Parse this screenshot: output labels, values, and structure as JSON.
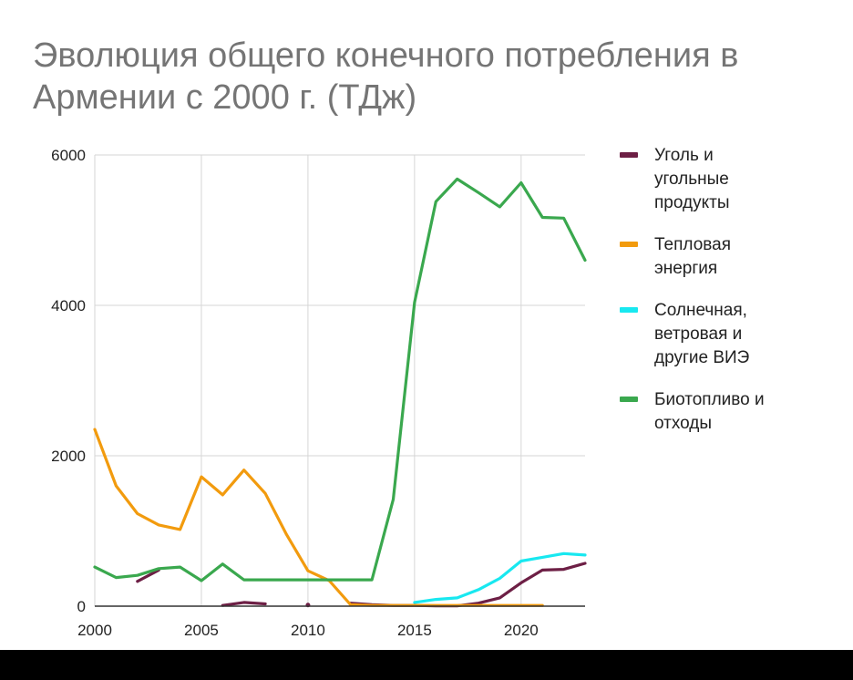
{
  "chart_data": {
    "type": "line",
    "title": "Эволюция общего конечного потребления в Армении с 2000 г. (ТДж)",
    "xlabel": "",
    "ylabel": "",
    "xlim": [
      2000,
      2023
    ],
    "ylim": [
      0,
      6000
    ],
    "x_ticks": [
      "2000",
      "2005",
      "2010",
      "2015",
      "2020"
    ],
    "y_ticks": [
      "0",
      "2000",
      "4000",
      "6000"
    ],
    "grid": true,
    "legend": "right",
    "series": [
      {
        "name": "Уголь и угольные продукты",
        "color": "#6d1f45",
        "points": [
          [
            2002,
            330
          ],
          [
            2003,
            480
          ],
          [
            2006,
            10
          ],
          [
            2007,
            50
          ],
          [
            2008,
            30
          ],
          [
            2010,
            15
          ],
          [
            2012,
            40
          ],
          [
            2013,
            20
          ],
          [
            2014,
            10
          ],
          [
            2015,
            10
          ],
          [
            2016,
            5
          ],
          [
            2017,
            5
          ],
          [
            2018,
            40
          ],
          [
            2019,
            110
          ],
          [
            2020,
            310
          ],
          [
            2021,
            480
          ],
          [
            2022,
            490
          ],
          [
            2023,
            570
          ]
        ]
      },
      {
        "name": "Тепловая энергия",
        "color": "#f29b0e",
        "points": [
          [
            2000,
            2350
          ],
          [
            2001,
            1600
          ],
          [
            2002,
            1230
          ],
          [
            2003,
            1080
          ],
          [
            2004,
            1020
          ],
          [
            2005,
            1720
          ],
          [
            2006,
            1480
          ],
          [
            2007,
            1810
          ],
          [
            2008,
            1500
          ],
          [
            2009,
            950
          ],
          [
            2010,
            470
          ],
          [
            2011,
            340
          ],
          [
            2012,
            20
          ],
          [
            2013,
            10
          ],
          [
            2014,
            10
          ],
          [
            2015,
            10
          ],
          [
            2016,
            10
          ],
          [
            2017,
            10
          ],
          [
            2018,
            10
          ],
          [
            2019,
            10
          ],
          [
            2020,
            10
          ],
          [
            2021,
            10
          ]
        ]
      },
      {
        "name": "Солнечная, ветровая и другие ВИЭ",
        "color": "#18e8f0",
        "points": [
          [
            2015,
            50
          ],
          [
            2016,
            90
          ],
          [
            2017,
            110
          ],
          [
            2018,
            220
          ],
          [
            2019,
            370
          ],
          [
            2020,
            600
          ],
          [
            2021,
            650
          ],
          [
            2022,
            700
          ],
          [
            2023,
            680
          ]
        ]
      },
      {
        "name": "Биотопливо и отходы",
        "color": "#3aa84e",
        "points": [
          [
            2000,
            520
          ],
          [
            2001,
            380
          ],
          [
            2002,
            410
          ],
          [
            2003,
            500
          ],
          [
            2004,
            520
          ],
          [
            2005,
            340
          ],
          [
            2006,
            560
          ],
          [
            2007,
            350
          ],
          [
            2008,
            350
          ],
          [
            2009,
            350
          ],
          [
            2010,
            350
          ],
          [
            2011,
            350
          ],
          [
            2012,
            350
          ],
          [
            2013,
            350
          ],
          [
            2014,
            1420
          ],
          [
            2015,
            4040
          ],
          [
            2016,
            5380
          ],
          [
            2017,
            5680
          ],
          [
            2018,
            5500
          ],
          [
            2019,
            5310
          ],
          [
            2020,
            5630
          ],
          [
            2021,
            5170
          ],
          [
            2022,
            5160
          ],
          [
            2023,
            4600
          ]
        ]
      }
    ]
  },
  "legend": {
    "items": [
      {
        "lines": [
          "Уголь и",
          "угольные",
          "продукты"
        ],
        "color": "#6d1f45"
      },
      {
        "lines": [
          "Тепловая",
          "энергия"
        ],
        "color": "#f29b0e"
      },
      {
        "lines": [
          "Солнечная,",
          "ветровая и",
          "другие ВИЭ"
        ],
        "color": "#18e8f0"
      },
      {
        "lines": [
          "Биотопливо и",
          "отходы"
        ],
        "color": "#3aa84e"
      }
    ]
  }
}
